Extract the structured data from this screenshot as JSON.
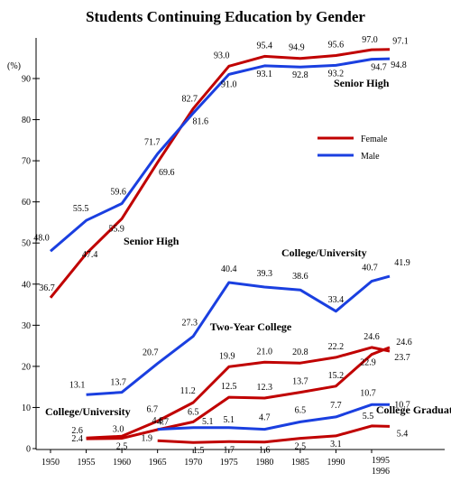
{
  "chart_data": {
    "type": "line",
    "title": "Students Continuing Education by Gender",
    "ylabel": "(%)",
    "xlabel": "",
    "ylim": [
      0,
      100
    ],
    "yticks": [
      0,
      10,
      20,
      30,
      40,
      50,
      60,
      70,
      80,
      90
    ],
    "x": [
      1950,
      1955,
      1960,
      1965,
      1970,
      1975,
      1980,
      1985,
      1990,
      1995,
      1996
    ],
    "x_tick_labels": [
      "1950",
      "1955",
      "1960",
      "1965",
      "1970",
      "1975",
      "1980",
      "1985",
      "1990",
      "1995",
      "1996"
    ],
    "colors": {
      "female": "#c00000",
      "male": "#1a3fe0"
    },
    "legend": {
      "position": "right-middle",
      "female_label": "Female",
      "male_label": "Male"
    },
    "series": [
      {
        "group": "Senior High",
        "gender": "female",
        "name": "Female",
        "x": [
          1950,
          1955,
          1960,
          1965,
          1970,
          1975,
          1980,
          1985,
          1990,
          1995,
          1996
        ],
        "values": [
          36.7,
          47.4,
          55.9,
          69.6,
          82.7,
          93.0,
          95.4,
          94.9,
          95.6,
          97.0,
          97.1
        ],
        "labels": [
          "36.7",
          "47.4",
          "55.9",
          "69.6",
          "82.7",
          "93.0",
          "95.4",
          "94.9",
          "95.6",
          "97.0",
          "97.1"
        ]
      },
      {
        "group": "Senior High",
        "gender": "male",
        "name": "Male",
        "x": [
          1950,
          1955,
          1960,
          1965,
          1970,
          1975,
          1980,
          1985,
          1990,
          1995,
          1996
        ],
        "values": [
          48.0,
          55.5,
          59.6,
          71.7,
          81.6,
          91.0,
          93.1,
          92.8,
          93.2,
          94.7,
          94.8
        ],
        "labels": [
          "48.0",
          "55.5",
          "59.6",
          "71.7",
          "81.6",
          "91.0",
          "93.1",
          "92.8",
          "93.2",
          "94.7",
          "94.8"
        ]
      },
      {
        "group": "College/University",
        "gender": "male",
        "name": "Male",
        "x": [
          1955,
          1960,
          1965,
          1970,
          1975,
          1980,
          1985,
          1990,
          1995,
          1996
        ],
        "values": [
          13.1,
          13.7,
          20.7,
          27.3,
          40.4,
          39.3,
          38.6,
          33.4,
          40.7,
          41.9
        ],
        "labels": [
          "13.1",
          "13.7",
          "20.7",
          "27.3",
          "40.4",
          "39.3",
          "38.6",
          "33.4",
          "40.7",
          "41.9"
        ]
      },
      {
        "group": "Two-Year College",
        "gender": "female",
        "name": "Female",
        "x": [
          1955,
          1960,
          1965,
          1970,
          1975,
          1980,
          1985,
          1990,
          1995,
          1996
        ],
        "values": [
          2.6,
          3.0,
          6.7,
          11.2,
          19.9,
          21.0,
          20.8,
          22.2,
          24.6,
          23.7
        ],
        "labels": [
          "2.6",
          "3.0",
          "6.7",
          "11.2",
          "19.9",
          "21.0",
          "20.8",
          "22.2",
          "24.6",
          "23.7"
        ]
      },
      {
        "group": "College/University",
        "gender": "female",
        "name": "Female",
        "x": [
          1955,
          1960,
          1965,
          1970,
          1975,
          1980,
          1985,
          1990,
          1995,
          1996
        ],
        "values": [
          2.4,
          2.5,
          4.6,
          6.5,
          12.5,
          12.3,
          13.7,
          15.2,
          22.9,
          24.6
        ],
        "labels": [
          "2.4",
          "2.5",
          "4.6",
          "6.5",
          "12.5",
          "12.3",
          "13.7",
          "15.2",
          "22.9",
          "24.6"
        ]
      },
      {
        "group": "College Graduate",
        "gender": "male",
        "name": "Male",
        "x": [
          1965,
          1970,
          1975,
          1980,
          1985,
          1990,
          1995,
          1996
        ],
        "values": [
          4.7,
          5.1,
          5.1,
          4.7,
          6.5,
          7.7,
          10.7,
          10.7
        ],
        "labels": [
          "4.7",
          "5.1",
          "5.1",
          "4.7",
          "6.5",
          "7.7",
          "10.7",
          "10.7"
        ]
      },
      {
        "group": "College Graduate",
        "gender": "female",
        "name": "Female",
        "x": [
          1965,
          1970,
          1975,
          1980,
          1985,
          1990,
          1995,
          1996
        ],
        "values": [
          1.9,
          1.5,
          1.7,
          1.6,
          2.5,
          3.1,
          5.5,
          5.4
        ],
        "labels": [
          "1.9",
          "1.5",
          "1.7",
          "1.6",
          "2.5",
          "3.1",
          "5.5",
          "5.4"
        ]
      }
    ],
    "annotations": [
      "Senior High",
      "Senior High",
      "College/University",
      "Two-Year College",
      "College/University",
      "College Graduate"
    ]
  }
}
